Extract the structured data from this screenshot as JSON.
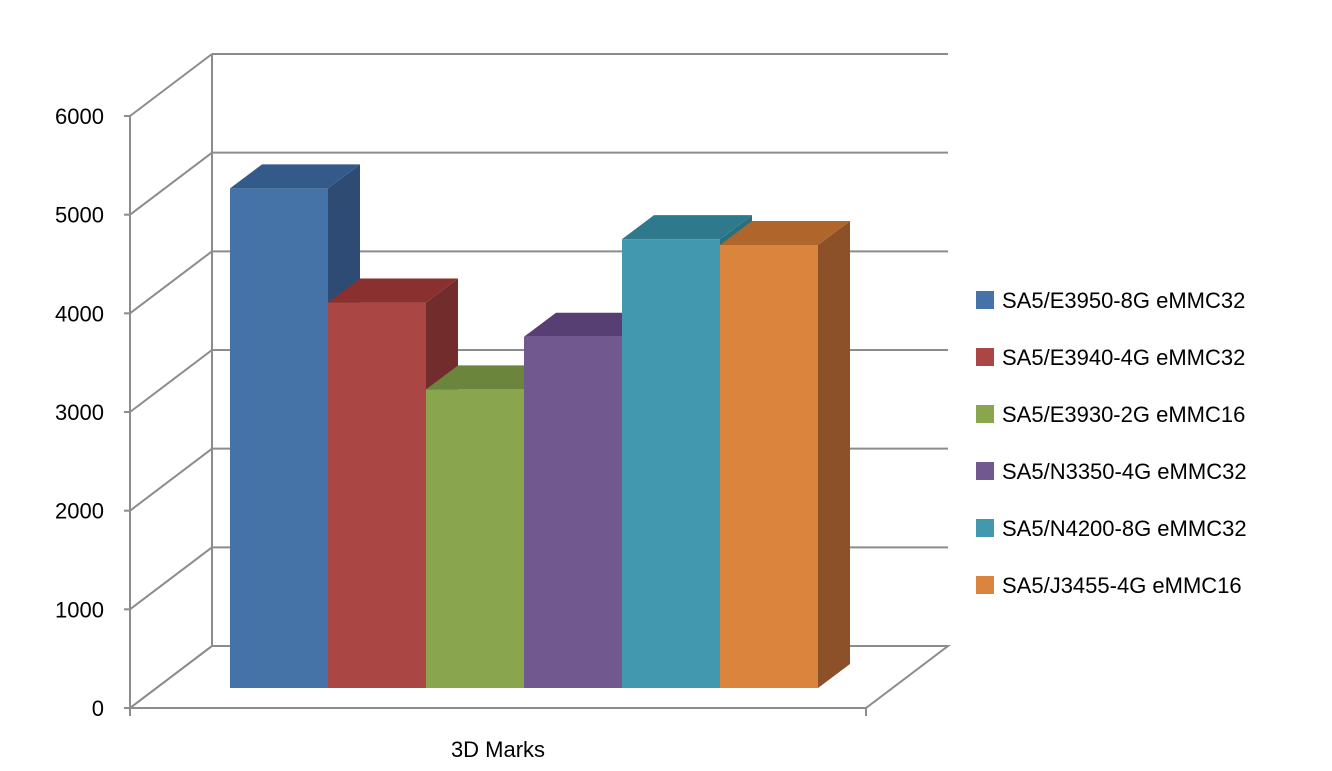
{
  "chart_data": {
    "type": "bar",
    "style": "3d-clustered-column",
    "title": "",
    "xlabel": "",
    "ylabel": "",
    "categories": [
      "3D Marks"
    ],
    "ylim": [
      0,
      6000
    ],
    "yticks": [
      0,
      1000,
      2000,
      3000,
      4000,
      5000,
      6000
    ],
    "grid": true,
    "legend_position": "right",
    "series": [
      {
        "name": "SA5/E3950-8G eMMC32",
        "values": [
          5120
        ],
        "color": "#4572A7",
        "top": "#345A8A",
        "side": "#2E4C73"
      },
      {
        "name": "SA5/E3940-4G eMMC32",
        "values": [
          3950
        ],
        "color": "#AA4643",
        "top": "#8A302E",
        "side": "#722C2B"
      },
      {
        "name": "SA5/E3930-2G eMMC16",
        "values": [
          3060
        ],
        "color": "#89A54E",
        "top": "#6C853C",
        "side": "#5C7233"
      },
      {
        "name": "SA5/N3350-4G eMMC32",
        "values": [
          3600
        ],
        "color": "#71588F",
        "top": "#573F73",
        "side": "#4B3763"
      },
      {
        "name": "SA5/N4200-8G eMMC32",
        "values": [
          4600
        ],
        "color": "#4198AF",
        "top": "#2E7A8C",
        "side": "#2A6F80"
      },
      {
        "name": "SA5/J3455-4G eMMC16",
        "values": [
          4540
        ],
        "color": "#DB843D",
        "top": "#B0652A",
        "side": "#8C5128"
      }
    ]
  }
}
